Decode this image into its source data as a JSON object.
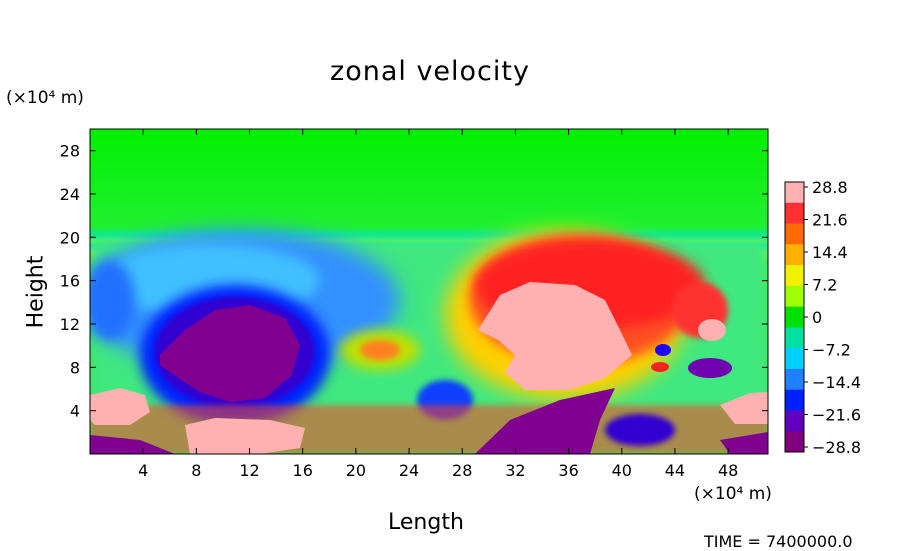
{
  "chart_data": {
    "type": "heatmap",
    "title": "zonal velocity",
    "xlabel": "Length",
    "ylabel": "Height",
    "x_unit_label": "(×10⁴ m)",
    "y_unit_label": "(×10⁴ m)",
    "xlim": [
      0,
      51
    ],
    "ylim": [
      0,
      30
    ],
    "x_ticks": [
      "4",
      "8",
      "12",
      "16",
      "20",
      "24",
      "28",
      "32",
      "36",
      "40",
      "44",
      "48"
    ],
    "x_tick_values": [
      4,
      8,
      12,
      16,
      20,
      24,
      28,
      32,
      36,
      40,
      44,
      48
    ],
    "y_ticks": [
      "4",
      "8",
      "12",
      "16",
      "20",
      "24",
      "28"
    ],
    "y_tick_values": [
      4,
      8,
      12,
      16,
      20,
      24,
      28
    ],
    "colorbar": {
      "labels": [
        "28.8",
        "21.6",
        "14.4",
        "7.2",
        "0",
        "−7.2",
        "−14.4",
        "−21.6",
        "−28.8"
      ],
      "range": [
        -28.8,
        28.8
      ],
      "colors_top_to_bottom": [
        "#ffb0b0",
        "#ff3030",
        "#ff6a00",
        "#ffb000",
        "#f0f000",
        "#a0ff00",
        "#00e000",
        "#00e0a0",
        "#00d0ff",
        "#2080ff",
        "#0020ff",
        "#6000c0",
        "#800080"
      ]
    },
    "features": [
      {
        "label": "background",
        "x": [
          0,
          51
        ],
        "y": [
          0,
          30
        ],
        "value": 0
      },
      {
        "label": "negative core",
        "x": [
          6,
          16
        ],
        "y": [
          5,
          14
        ],
        "value": -28.8
      },
      {
        "label": "positive core",
        "x": [
          30,
          40
        ],
        "y": [
          6,
          16
        ],
        "value": 28.8
      },
      {
        "label": "surface positive left",
        "x": [
          0,
          4
        ],
        "y": [
          1,
          5
        ],
        "value": 28.8
      },
      {
        "label": "surface positive center",
        "x": [
          8,
          16
        ],
        "y": [
          0,
          3
        ],
        "value": 28.8
      },
      {
        "label": "surface positive right",
        "x": [
          47,
          51
        ],
        "y": [
          1,
          5
        ],
        "value": 28.8
      }
    ],
    "time_label": "TIME = 7400000.0"
  }
}
